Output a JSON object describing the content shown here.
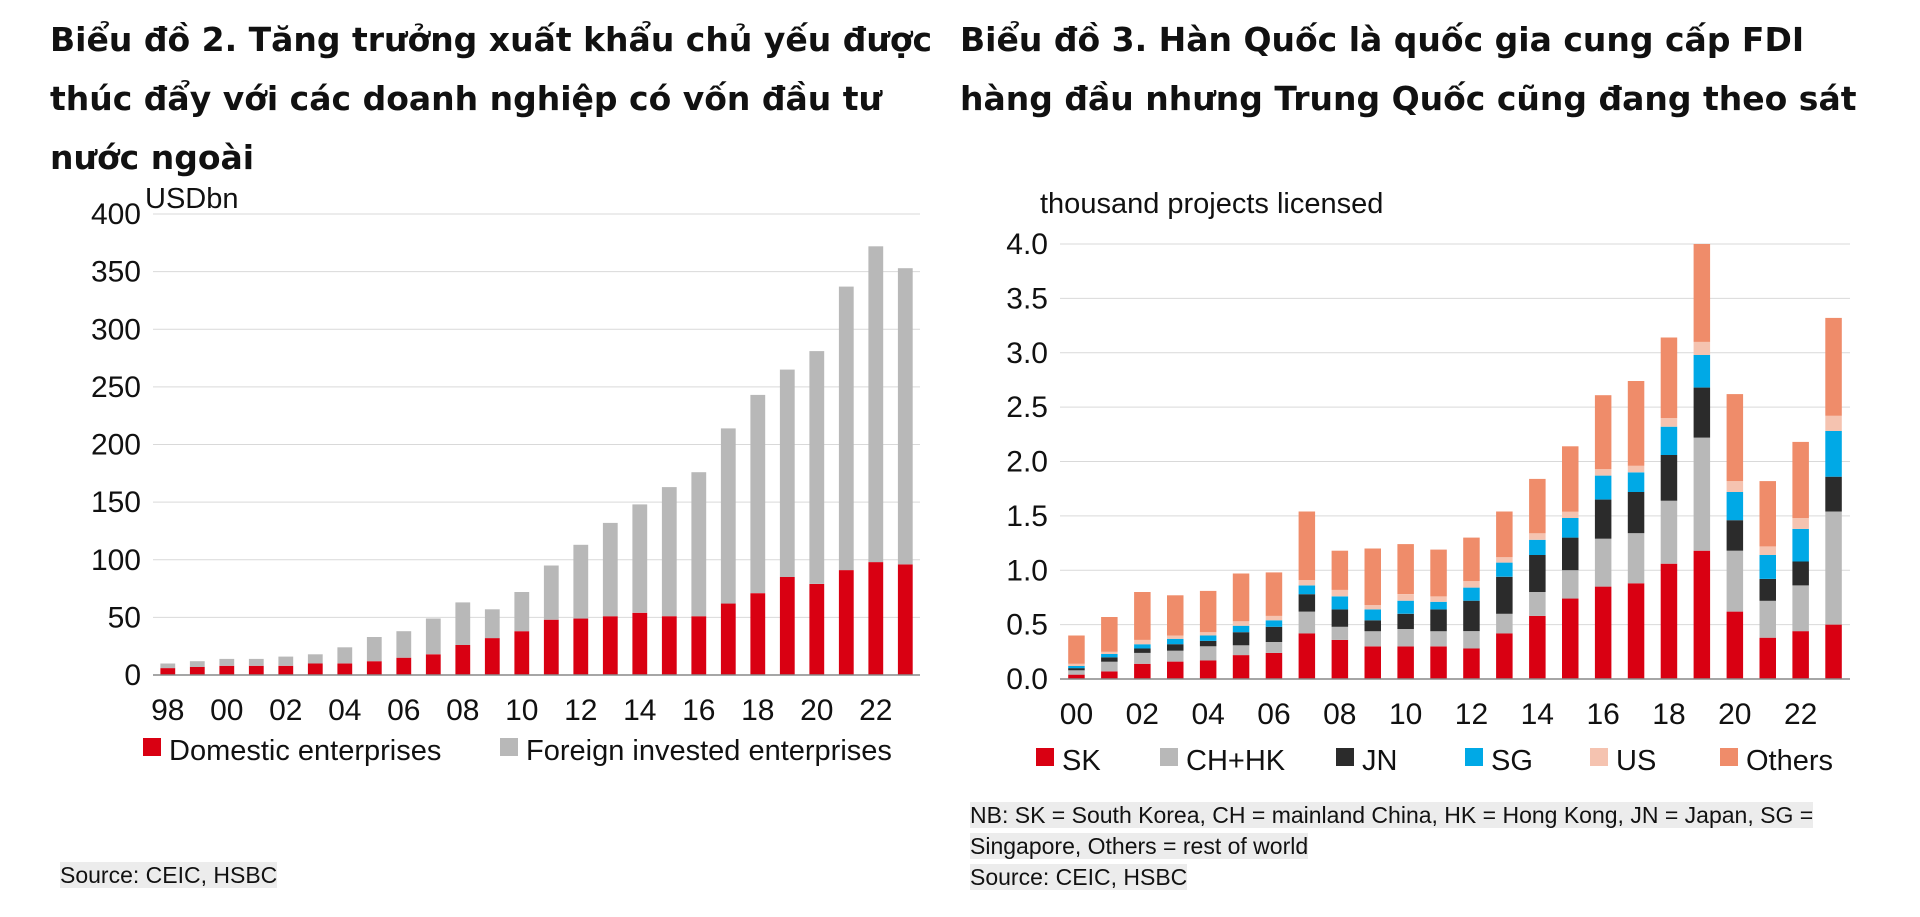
{
  "colors": {
    "red": "#d90012",
    "gray": "#b8b8b8",
    "black": "#2b2b2b",
    "cyan": "#00a9e6",
    "pink": "#f5c3b0",
    "orange": "#ef8c6a",
    "grid": "#d9d9d9"
  },
  "chart_data": [
    {
      "title": "Biểu đồ 2. Tăng trưởng xuất khẩu chủ yếu được thúc đẩy với các doanh nghiệp có vốn đầu tư nước ngoài",
      "type": "bar",
      "stacked": true,
      "unit_label": "USDbn",
      "ylim": [
        0,
        400
      ],
      "yticks": [
        0,
        50,
        100,
        150,
        200,
        250,
        300,
        350,
        400
      ],
      "x_tick_labels": [
        "98",
        "00",
        "02",
        "04",
        "06",
        "08",
        "10",
        "12",
        "14",
        "16",
        "18",
        "20",
        "22"
      ],
      "categories": [
        "1998",
        "1999",
        "2000",
        "2001",
        "2002",
        "2003",
        "2004",
        "2005",
        "2006",
        "2007",
        "2008",
        "2009",
        "2010",
        "2011",
        "2012",
        "2013",
        "2014",
        "2015",
        "2016",
        "2017",
        "2018",
        "2019",
        "2020",
        "2021",
        "2022",
        "2023"
      ],
      "series": [
        {
          "name": "Domestic enterprises",
          "color_key": "red",
          "values": [
            6,
            7,
            8,
            8,
            8,
            10,
            10,
            12,
            15,
            18,
            26,
            32,
            38,
            48,
            49,
            51,
            54,
            51,
            51,
            62,
            71,
            85,
            79,
            91,
            98,
            96
          ]
        },
        {
          "name": "Foreign invested enterprises",
          "color_key": "gray",
          "values": [
            4,
            5,
            6,
            6,
            8,
            8,
            14,
            21,
            23,
            31,
            37,
            25,
            34,
            47,
            64,
            81,
            94,
            112,
            125,
            152,
            172,
            180,
            202,
            246,
            274,
            257
          ]
        }
      ],
      "legend_position": "bottom",
      "source": "Source: CEIC, HSBC"
    },
    {
      "title": "Biểu đồ 3. Hàn Quốc là quốc gia cung cấp FDI hàng đầu nhưng Trung Quốc cũng đang theo sát",
      "type": "bar",
      "stacked": true,
      "unit_label": "thousand projects licensed",
      "ylim": [
        0,
        4.0
      ],
      "yticks": [
        "0.0",
        "0.5",
        "1.0",
        "1.5",
        "2.0",
        "2.5",
        "3.0",
        "3.5",
        "4.0"
      ],
      "x_tick_labels": [
        "00",
        "02",
        "04",
        "06",
        "08",
        "10",
        "12",
        "14",
        "16",
        "18",
        "20",
        "22"
      ],
      "categories": [
        "2000",
        "2001",
        "2002",
        "2003",
        "2004",
        "2005",
        "2006",
        "2007",
        "2008",
        "2009",
        "2010",
        "2011",
        "2012",
        "2013",
        "2014",
        "2015",
        "2016",
        "2017",
        "2018",
        "2019",
        "2020",
        "2021",
        "2022",
        "2023"
      ],
      "series": [
        {
          "name": "SK",
          "color_key": "red",
          "values": [
            0.04,
            0.07,
            0.14,
            0.16,
            0.17,
            0.22,
            0.24,
            0.42,
            0.36,
            0.3,
            0.3,
            0.3,
            0.28,
            0.42,
            0.58,
            0.74,
            0.85,
            0.88,
            1.06,
            1.18,
            0.62,
            0.38,
            0.44,
            0.5
          ]
        },
        {
          "name": "CH+HK",
          "color_key": "gray",
          "values": [
            0.04,
            0.09,
            0.1,
            0.1,
            0.13,
            0.09,
            0.1,
            0.2,
            0.12,
            0.14,
            0.16,
            0.14,
            0.16,
            0.18,
            0.22,
            0.26,
            0.44,
            0.46,
            0.58,
            1.04,
            0.56,
            0.34,
            0.42,
            1.04
          ]
        },
        {
          "name": "JN",
          "color_key": "black",
          "values": [
            0.02,
            0.04,
            0.04,
            0.06,
            0.05,
            0.12,
            0.14,
            0.16,
            0.16,
            0.1,
            0.14,
            0.2,
            0.28,
            0.34,
            0.34,
            0.3,
            0.36,
            0.38,
            0.42,
            0.46,
            0.28,
            0.2,
            0.22,
            0.32
          ]
        },
        {
          "name": "SG",
          "color_key": "cyan",
          "values": [
            0.02,
            0.03,
            0.04,
            0.05,
            0.05,
            0.06,
            0.06,
            0.08,
            0.12,
            0.1,
            0.12,
            0.07,
            0.12,
            0.13,
            0.14,
            0.18,
            0.22,
            0.18,
            0.26,
            0.3,
            0.26,
            0.22,
            0.3,
            0.42
          ]
        },
        {
          "name": "US",
          "color_key": "pink",
          "values": [
            0.02,
            0.02,
            0.04,
            0.03,
            0.03,
            0.04,
            0.04,
            0.05,
            0.06,
            0.04,
            0.06,
            0.05,
            0.06,
            0.05,
            0.06,
            0.06,
            0.06,
            0.06,
            0.08,
            0.12,
            0.1,
            0.08,
            0.1,
            0.14
          ]
        },
        {
          "name": "Others",
          "color_key": "orange",
          "values": [
            0.26,
            0.32,
            0.44,
            0.37,
            0.38,
            0.44,
            0.4,
            0.63,
            0.36,
            0.52,
            0.46,
            0.43,
            0.4,
            0.42,
            0.5,
            0.6,
            0.68,
            0.78,
            0.74,
            0.9,
            0.8,
            0.6,
            0.7,
            0.9
          ]
        }
      ],
      "legend_position": "bottom",
      "note_line1": "NB: SK = South Korea, CH = mainland China, HK = Hong Kong, JN = Japan, SG =",
      "note_line2": "Singapore, Others = rest of world",
      "source": "Source: CEIC, HSBC"
    }
  ]
}
